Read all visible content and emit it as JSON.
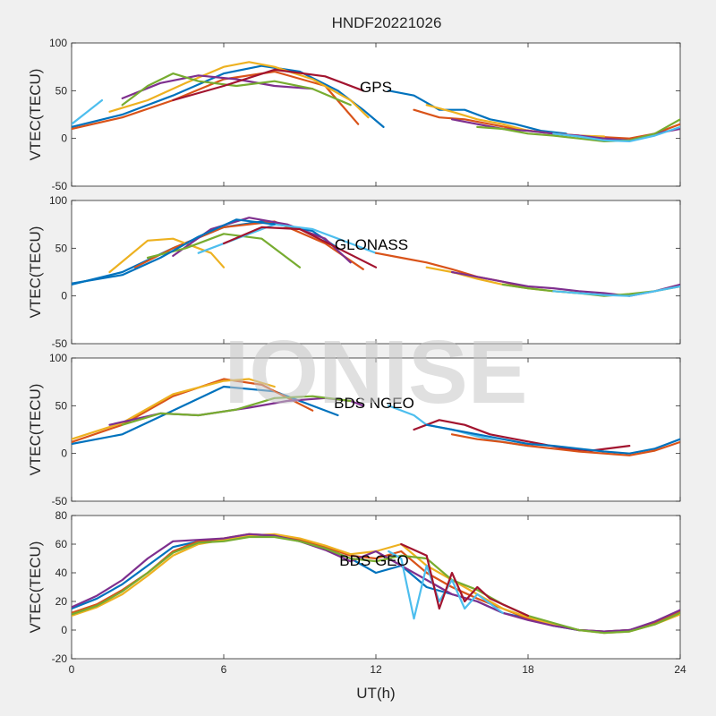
{
  "chart_data": {
    "type": "line",
    "title": "HNDF20221026",
    "xlabel": "UT(h)",
    "xlim": [
      0,
      24
    ],
    "xticks": [
      0,
      6,
      12,
      18,
      24
    ],
    "watermark": "IONISE",
    "colors": [
      "#0072BD",
      "#D95319",
      "#EDB120",
      "#7E2F8E",
      "#77AC30",
      "#4DBEEE",
      "#A2142F"
    ],
    "panels": [
      {
        "label": "GPS",
        "ylabel": "VTEC(TECU)",
        "ylim": [
          -50,
          100
        ],
        "yticks": [
          -50,
          0,
          50,
          100
        ],
        "series": [
          {
            "x": [
              0,
              2,
              4,
              6,
              7.5,
              9,
              10.5,
              11.5,
              12.3
            ],
            "y": [
              12,
              25,
              45,
              68,
              76,
              70,
              50,
              30,
              12
            ]
          },
          {
            "x": [
              0,
              2,
              4,
              6,
              8,
              10,
              11.3
            ],
            "y": [
              10,
              22,
              40,
              62,
              70,
              55,
              15
            ]
          },
          {
            "x": [
              1.5,
              3,
              4.5,
              6,
              7,
              8,
              9.5,
              11,
              11.7
            ],
            "y": [
              28,
              40,
              58,
              75,
              80,
              75,
              62,
              40,
              22
            ]
          },
          {
            "x": [
              2,
              3.5,
              5,
              6.5,
              8,
              9.5
            ],
            "y": [
              42,
              58,
              66,
              62,
              55,
              52
            ]
          },
          {
            "x": [
              2,
              3,
              4,
              5,
              6.5,
              8,
              9.5,
              11
            ],
            "y": [
              35,
              55,
              68,
              60,
              55,
              60,
              52,
              35
            ]
          },
          {
            "x": [
              0,
              1.2
            ],
            "y": [
              15,
              40
            ]
          },
          {
            "x": [
              4,
              6,
              8,
              10,
              11.5
            ],
            "y": [
              40,
              55,
              72,
              65,
              50
            ]
          },
          {
            "x": [
              12.5,
              13.5,
              14.5,
              15.5,
              16.5,
              17.5,
              18.5,
              19.5
            ],
            "y": [
              50,
              45,
              30,
              30,
              20,
              15,
              8,
              5
            ]
          },
          {
            "x": [
              13.5,
              14.5,
              15.5,
              16.5,
              17.5,
              19,
              20.5,
              22,
              23,
              24
            ],
            "y": [
              30,
              22,
              20,
              15,
              10,
              5,
              2,
              0,
              5,
              15
            ]
          },
          {
            "x": [
              14,
              15,
              16,
              17,
              18,
              19,
              20,
              21
            ],
            "y": [
              35,
              28,
              20,
              15,
              8,
              5,
              3,
              2
            ]
          },
          {
            "x": [
              15,
              16,
              17,
              18,
              19,
              20,
              21,
              22,
              23,
              24
            ],
            "y": [
              20,
              15,
              10,
              8,
              5,
              3,
              0,
              -2,
              5,
              10
            ]
          },
          {
            "x": [
              16,
              17,
              18,
              19,
              20,
              21,
              22,
              23,
              24
            ],
            "y": [
              12,
              10,
              5,
              3,
              0,
              -3,
              -2,
              5,
              20
            ]
          },
          {
            "x": [
              19,
              20,
              21,
              22,
              23,
              24
            ],
            "y": [
              5,
              2,
              -2,
              -3,
              3,
              12
            ]
          }
        ]
      },
      {
        "label": "GLONASS",
        "ylabel": "VTEC(TECU)",
        "ylim": [
          -50,
          100
        ],
        "yticks": [
          -50,
          0,
          50,
          100
        ],
        "series": [
          {
            "x": [
              0,
              2,
              4,
              6,
              7.5,
              9.5,
              10.5
            ],
            "y": [
              12,
              25,
              50,
              72,
              78,
              68,
              50
            ]
          },
          {
            "x": [
              2.5,
              4,
              6,
              8,
              10,
              11.5
            ],
            "y": [
              30,
              50,
              72,
              78,
              55,
              28
            ]
          },
          {
            "x": [
              1.5,
              3,
              4,
              5.5,
              6
            ],
            "y": [
              25,
              58,
              60,
              45,
              30
            ]
          },
          {
            "x": [
              4,
              5.5,
              7,
              8.5,
              10,
              11
            ],
            "y": [
              42,
              70,
              82,
              75,
              60,
              35
            ]
          },
          {
            "x": [
              3,
              4.5,
              6,
              7.5,
              9
            ],
            "y": [
              40,
              50,
              65,
              60,
              30
            ]
          },
          {
            "x": [
              5,
              6.5,
              8,
              9.5,
              11,
              12
            ],
            "y": [
              45,
              60,
              75,
              70,
              55,
              45
            ]
          },
          {
            "x": [
              6,
              7.5,
              9,
              10.5,
              12
            ],
            "y": [
              55,
              72,
              70,
              50,
              30
            ]
          },
          {
            "x": [
              0,
              2,
              3.5,
              5,
              6.5,
              8
            ],
            "y": [
              13,
              22,
              40,
              62,
              80,
              75
            ]
          },
          {
            "x": [
              12,
              13,
              14,
              15,
              16,
              17,
              18
            ],
            "y": [
              45,
              40,
              35,
              28,
              20,
              15,
              8
            ]
          },
          {
            "x": [
              14,
              15,
              16,
              17,
              18,
              19,
              20
            ],
            "y": [
              30,
              25,
              18,
              12,
              8,
              5,
              3
            ]
          },
          {
            "x": [
              15,
              16,
              17,
              18,
              19,
              20,
              21,
              22,
              23,
              24
            ],
            "y": [
              25,
              20,
              15,
              10,
              8,
              5,
              3,
              0,
              5,
              12
            ]
          },
          {
            "x": [
              17,
              18,
              19,
              20,
              21,
              22,
              23,
              24
            ],
            "y": [
              12,
              8,
              5,
              3,
              0,
              2,
              5,
              10
            ]
          },
          {
            "x": [
              19,
              20,
              21,
              22,
              23,
              24
            ],
            "y": [
              5,
              3,
              1,
              0,
              5,
              10
            ]
          }
        ]
      },
      {
        "label": "BDS NGEO",
        "ylabel": "VTEC(TECU)",
        "ylim": [
          -50,
          100
        ],
        "yticks": [
          -50,
          0,
          50,
          100
        ],
        "series": [
          {
            "x": [
              0,
              2,
              4,
              6,
              8,
              10.5
            ],
            "y": [
              10,
              20,
              45,
              70,
              65,
              40
            ]
          },
          {
            "x": [
              0,
              2,
              4,
              6,
              7.5,
              9.5
            ],
            "y": [
              12,
              30,
              60,
              78,
              72,
              45
            ]
          },
          {
            "x": [
              0,
              2,
              4,
              6,
              7,
              8
            ],
            "y": [
              15,
              32,
              62,
              76,
              78,
              70
            ]
          },
          {
            "x": [
              1.5,
              3.5,
              5,
              7,
              8.5,
              10,
              11,
              11.5
            ],
            "y": [
              30,
              42,
              40,
              48,
              55,
              58,
              55,
              50
            ]
          },
          {
            "x": [
              2,
              3.5,
              5,
              6.5,
              8,
              9.5,
              11
            ],
            "y": [
              30,
              42,
              40,
              46,
              58,
              60,
              55
            ]
          },
          {
            "x": [
              12.5,
              13.5,
              14,
              15,
              16,
              17,
              18
            ],
            "y": [
              50,
              40,
              30,
              25,
              18,
              12,
              8
            ]
          },
          {
            "x": [
              13.5,
              14.5,
              15.5,
              16.5,
              17.5,
              18.5,
              19.5,
              20.5,
              22
            ],
            "y": [
              25,
              35,
              30,
              20,
              15,
              10,
              5,
              3,
              8
            ]
          },
          {
            "x": [
              14,
              15,
              16,
              17,
              18,
              19,
              20,
              21,
              22,
              23,
              24
            ],
            "y": [
              30,
              25,
              20,
              15,
              10,
              8,
              5,
              2,
              0,
              5,
              15
            ]
          },
          {
            "x": [
              15,
              16,
              17,
              18,
              19,
              20,
              21,
              22,
              23,
              24
            ],
            "y": [
              20,
              15,
              12,
              8,
              5,
              2,
              0,
              -2,
              3,
              12
            ]
          }
        ]
      },
      {
        "label": "BDS GEO",
        "ylabel": "VTEC(TECU)",
        "ylim": [
          -20,
          80
        ],
        "yticks": [
          -20,
          0,
          20,
          40,
          60,
          80
        ],
        "series": [
          {
            "x": [
              0,
              1,
              2,
              3,
              4,
              5,
              6,
              7,
              8,
              9,
              10,
              11,
              12,
              13,
              14,
              15,
              16,
              17,
              18,
              19,
              20,
              21,
              22,
              23,
              24
            ],
            "y": [
              15,
              22,
              32,
              45,
              58,
              62,
              63,
              66,
              66,
              62,
              57,
              50,
              40,
              45,
              30,
              25,
              20,
              12,
              8,
              3,
              0,
              -1,
              0,
              5,
              12
            ]
          },
          {
            "x": [
              0,
              1,
              2,
              3,
              4,
              5,
              6,
              7,
              8,
              9,
              10,
              11,
              12,
              13,
              14,
              15,
              16,
              17,
              18,
              19,
              20,
              21,
              22,
              23,
              24
            ],
            "y": [
              12,
              18,
              28,
              40,
              55,
              62,
              64,
              67,
              66,
              63,
              58,
              52,
              50,
              55,
              40,
              30,
              22,
              15,
              8,
              4,
              0,
              -1,
              0,
              5,
              13
            ]
          },
          {
            "x": [
              0,
              1,
              2,
              3,
              4,
              5,
              6,
              7,
              8,
              9,
              10,
              11,
              12,
              13,
              14,
              15,
              16,
              17,
              18,
              19,
              20,
              21,
              22,
              23,
              24
            ],
            "y": [
              10,
              16,
              25,
              38,
              52,
              60,
              63,
              66,
              67,
              64,
              59,
              53,
              55,
              60,
              45,
              35,
              25,
              15,
              9,
              4,
              0,
              -2,
              -1,
              4,
              11
            ]
          },
          {
            "x": [
              0,
              1,
              2,
              3,
              4,
              5,
              6,
              7,
              8,
              9,
              10,
              11,
              12,
              13,
              14,
              15,
              16,
              17,
              18,
              19,
              20,
              21,
              22,
              23,
              24
            ],
            "y": [
              16,
              24,
              35,
              50,
              62,
              63,
              64,
              67,
              66,
              62,
              56,
              48,
              55,
              45,
              35,
              25,
              20,
              12,
              7,
              3,
              0,
              -1,
              0,
              6,
              14
            ]
          },
          {
            "x": [
              0,
              1,
              2,
              3,
              4,
              5,
              6,
              7,
              8,
              9,
              10,
              11,
              12,
              13,
              14,
              15,
              16,
              17,
              18,
              19,
              20,
              21,
              22,
              23,
              24
            ],
            "y": [
              11,
              17,
              27,
              40,
              54,
              61,
              62,
              65,
              65,
              62,
              57,
              50,
              48,
              52,
              50,
              35,
              28,
              18,
              10,
              5,
              0,
              -2,
              -1,
              4,
              12
            ]
          },
          {
            "x": [
              12.5,
              13,
              13.5,
              14,
              14.5,
              15,
              15.5,
              16,
              17
            ],
            "y": [
              55,
              50,
              8,
              45,
              20,
              35,
              15,
              25,
              12
            ]
          },
          {
            "x": [
              13,
              14,
              14.5,
              15,
              15.5,
              16,
              16.5,
              17,
              18
            ],
            "y": [
              60,
              52,
              15,
              40,
              20,
              30,
              22,
              18,
              10
            ]
          }
        ]
      }
    ]
  }
}
